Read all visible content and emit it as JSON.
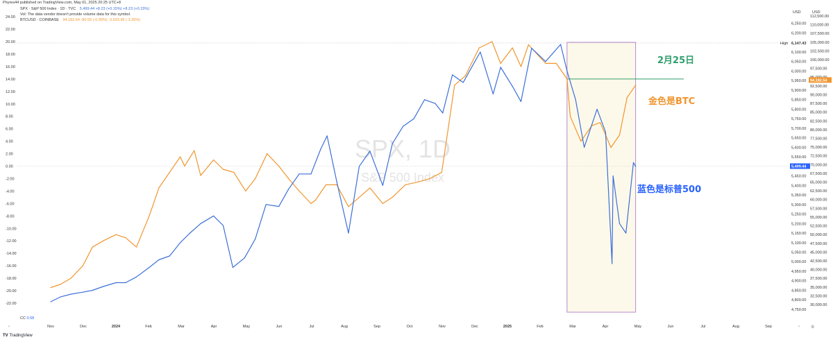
{
  "header": {
    "published": "Phyres44 published on TradingView.com, May 01, 2025 20:25 UTC+8",
    "spx": {
      "symbol": "SPX · S&P 500 Index · 1D · TVC",
      "values": "5,499.44 +8.23 (+0.15%) +8.23 (+0.15%)"
    },
    "vol_note": "Vol: The data vendor doesn't provide volume data for this symbol.",
    "btc": {
      "symbol": "BTCUSD · COINBASE",
      "values": "94,182.54 -80.59 (-0.09%) -3,533.96 (-3.26%)"
    }
  },
  "annotations": {
    "feb25": "2月25日",
    "btc_gold": "金色是BTC",
    "spx_blue": "蓝色是标普500"
  },
  "indicator": {
    "label": "CC",
    "value": "0.58"
  },
  "axis_units": {
    "spx": "USD",
    "btc": "USD"
  },
  "price_tags": {
    "high_label": "High",
    "high_value": "6,147.43",
    "btc_last": "94,182.54",
    "spx_last": "5,499.44"
  },
  "branding": {
    "logo": "TradingView"
  },
  "colors": {
    "btc": "#f0952e",
    "spx": "#3c6fd8",
    "box_border": "#b58acb",
    "box_fill": "#fdf9ea",
    "hline": "#2e9e6b",
    "btc_tag": "#f0952e",
    "spx_tag": "#2962ff"
  },
  "chart_data": {
    "type": "line",
    "x_ticks": [
      "Nov",
      "Dec",
      "2024",
      "Feb",
      "Mar",
      "Apr",
      "May",
      "Jun",
      "Jul",
      "Aug",
      "Sep",
      "Oct",
      "Nov",
      "Dec",
      "2025",
      "Feb",
      "Mar",
      "Apr",
      "May",
      "Jun",
      "Jul",
      "Aug",
      "Sep"
    ],
    "left_axis": {
      "ticks": [
        24,
        22,
        20,
        18,
        16,
        14,
        12,
        10,
        8,
        6,
        4,
        2,
        0,
        -2,
        -4,
        -6,
        -8,
        -10,
        -12,
        -14,
        -16,
        -18,
        -20,
        -22
      ],
      "tick_labels": [
        "24.00",
        "22.00",
        "20.00",
        "18.00",
        "16.00",
        "14.00",
        "12.00",
        "10.00",
        "8.00",
        "6.00",
        "4.00",
        "2.00",
        "0.00",
        "-2.00",
        "-4.00",
        "-6.00",
        "-8.00",
        "-10.00",
        "-12.00",
        "-14.00",
        "-16.00",
        "-18.00",
        "-20.00",
        "-22.00"
      ]
    },
    "spx_axis": {
      "ticks": [
        6250,
        6200,
        6150,
        6100,
        6050,
        6000,
        5950,
        5900,
        5850,
        5800,
        5750,
        5700,
        5650,
        5600,
        5550,
        5500,
        5450,
        5400,
        5350,
        5300,
        5250,
        5200,
        5150,
        5100,
        5050,
        5000,
        4950,
        4900,
        4850,
        4800,
        4750
      ],
      "tick_labels": [
        "6,250.00",
        "6,200.00",
        "6,150.00",
        "6,100.00",
        "6,050.00",
        "6,000.00",
        "5,950.00",
        "5,900.00",
        "5,850.00",
        "5,800.00",
        "5,750.00",
        "5,700.00",
        "5,650.00",
        "5,600.00",
        "5,550.00",
        "5,500.00",
        "5,450.00",
        "5,400.00",
        "5,350.00",
        "5,300.00",
        "5,250.00",
        "5,200.00",
        "5,150.00",
        "5,100.00",
        "5,050.00",
        "5,000.00",
        "4,950.00",
        "4,900.00",
        "4,850.00",
        "4,800.00",
        "4,750.00"
      ]
    },
    "btc_axis": {
      "ticks": [
        112500,
        110000,
        107500,
        105000,
        102500,
        100000,
        97500,
        95000,
        92500,
        90000,
        87500,
        85000,
        82500,
        80000,
        77500,
        75000,
        72500,
        70000,
        67500,
        65000,
        62500,
        60000,
        57500,
        55000,
        52500,
        50000,
        47500,
        45000,
        42500,
        40000,
        37500,
        35000,
        32500,
        30000
      ],
      "tick_labels": [
        "112,500.00",
        "110,000.00",
        "107,500.00",
        "105,000.00",
        "102,500.00",
        "100,000.00",
        "97,500.00",
        "95,000.00",
        "92,500.00",
        "90,000.00",
        "87,500.00",
        "85,000.00",
        "82,500.00",
        "80,000.00",
        "77,500.00",
        "75,000.00",
        "72,500.00",
        "70,000.00",
        "67,500.00",
        "65,000.00",
        "62,500.00",
        "60,000.00",
        "57,500.00",
        "55,000.00",
        "52,500.00",
        "50,000.00",
        "47,500.00",
        "45,000.00",
        "42,500.00",
        "40,000.00",
        "37,500.00",
        "35,000.00",
        "32,500.00",
        "30,000.00"
      ]
    },
    "series": [
      {
        "name": "BTCUSD · COINBASE",
        "x": [
          "2023-11-01",
          "2023-11-10",
          "2023-11-20",
          "2023-12-01",
          "2023-12-10",
          "2023-12-20",
          "2024-01-01",
          "2024-01-10",
          "2024-01-20",
          "2024-02-01",
          "2024-02-10",
          "2024-02-20",
          "2024-03-01",
          "2024-03-05",
          "2024-03-14",
          "2024-03-20",
          "2024-04-01",
          "2024-04-10",
          "2024-04-20",
          "2024-05-01",
          "2024-05-10",
          "2024-05-21",
          "2024-06-01",
          "2024-06-10",
          "2024-06-20",
          "2024-07-01",
          "2024-07-05",
          "2024-07-15",
          "2024-07-25",
          "2024-08-05",
          "2024-08-15",
          "2024-08-25",
          "2024-09-06",
          "2024-09-15",
          "2024-09-27",
          "2024-10-10",
          "2024-10-20",
          "2024-10-31",
          "2024-11-06",
          "2024-11-12",
          "2024-11-22",
          "2024-12-05",
          "2024-12-17",
          "2024-12-25",
          "2025-01-05",
          "2025-01-13",
          "2025-01-20",
          "2025-01-28",
          "2025-02-05",
          "2025-02-15",
          "2025-02-25",
          "2025-02-28",
          "2025-03-05",
          "2025-03-10",
          "2025-03-20",
          "2025-03-28",
          "2025-04-07",
          "2025-04-15",
          "2025-04-22",
          "2025-04-30"
        ],
        "y": [
          -19.5,
          -19.0,
          -18.0,
          -16.0,
          -13.0,
          -12.0,
          -11.0,
          -11.5,
          -13.0,
          -8.0,
          -3.5,
          -1.0,
          1.5,
          0.0,
          2.5,
          -1.5,
          1.0,
          -0.5,
          -1.0,
          -4.0,
          -2.0,
          2.0,
          0.0,
          -2.0,
          -4.0,
          -6.0,
          -5.5,
          -3.0,
          -3.0,
          -6.5,
          -5.0,
          -3.5,
          -6.0,
          -5.0,
          -3.0,
          -2.5,
          -2.0,
          -1.0,
          6.0,
          13.0,
          14.5,
          19.0,
          20.0,
          16.5,
          19.0,
          16.0,
          19.5,
          18.0,
          16.5,
          16.5,
          14.0,
          8.0,
          6.0,
          4.0,
          6.5,
          7.0,
          3.0,
          5.0,
          11.0,
          13.0
        ]
      },
      {
        "name": "SPX · S&P 500 Index · 1D · TVC",
        "x": [
          "2023-11-01",
          "2023-11-10",
          "2023-11-20",
          "2023-12-01",
          "2023-12-10",
          "2023-12-20",
          "2024-01-01",
          "2024-01-10",
          "2024-01-20",
          "2024-02-01",
          "2024-02-10",
          "2024-02-20",
          "2024-03-01",
          "2024-03-10",
          "2024-03-20",
          "2024-04-01",
          "2024-04-10",
          "2024-04-19",
          "2024-04-30",
          "2024-05-10",
          "2024-05-20",
          "2024-06-01",
          "2024-06-10",
          "2024-06-20",
          "2024-07-01",
          "2024-07-10",
          "2024-07-16",
          "2024-07-25",
          "2024-08-05",
          "2024-08-15",
          "2024-08-25",
          "2024-09-06",
          "2024-09-15",
          "2024-09-25",
          "2024-10-05",
          "2024-10-15",
          "2024-10-25",
          "2024-11-01",
          "2024-11-10",
          "2024-11-20",
          "2024-12-01",
          "2024-12-06",
          "2024-12-18",
          "2024-12-25",
          "2025-01-05",
          "2025-01-13",
          "2025-01-23",
          "2025-02-05",
          "2025-02-19",
          "2025-02-25",
          "2025-03-05",
          "2025-03-13",
          "2025-03-25",
          "2025-04-02",
          "2025-04-08",
          "2025-04-09",
          "2025-04-15",
          "2025-04-21",
          "2025-04-28",
          "2025-04-30"
        ],
        "y": [
          4790,
          4815,
          4830,
          4840,
          4850,
          4870,
          4890,
          4890,
          4920,
          4970,
          5010,
          5030,
          5100,
          5150,
          5200,
          5240,
          5190,
          4970,
          5020,
          5120,
          5300,
          5290,
          5380,
          5460,
          5460,
          5590,
          5660,
          5420,
          5150,
          5500,
          5580,
          5400,
          5620,
          5710,
          5750,
          5850,
          5830,
          5780,
          5980,
          5940,
          6050,
          6100,
          5880,
          6020,
          5920,
          5840,
          6120,
          6050,
          6140,
          6000,
          5850,
          5600,
          5800,
          5680,
          4990,
          5450,
          5200,
          5150,
          5520,
          5500
        ]
      }
    ],
    "high_value": 6147.43,
    "reference_line": {
      "label": "2月25日",
      "btc_value": 14.0
    },
    "highlight_range": {
      "from": "2025-02-25",
      "to": "2025-04-30"
    },
    "grid": false
  }
}
